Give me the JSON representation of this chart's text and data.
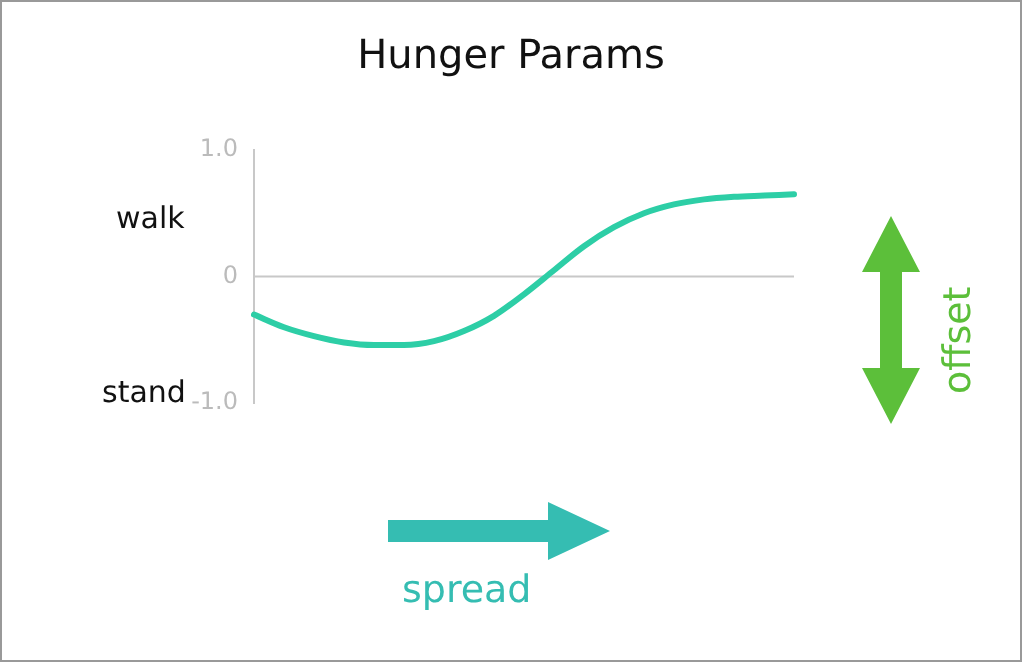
{
  "chart_data": {
    "type": "line",
    "title": "Hunger Params",
    "categories": [
      null,
      null,
      null,
      null,
      null,
      null,
      null,
      null,
      null,
      null,
      null,
      null,
      null,
      null,
      null,
      null,
      null,
      null,
      null
    ],
    "series": [
      {
        "color": "#2dcea6",
        "values": [
          -0.3,
          -0.4,
          -0.47,
          -0.52,
          -0.54,
          -0.54,
          -0.51,
          -0.43,
          -0.31,
          -0.14,
          0.05,
          0.24,
          0.39,
          0.5,
          0.57,
          0.61,
          0.63,
          0.64,
          0.65
        ]
      }
    ],
    "ylim": [
      -1,
      1
    ],
    "yticks": [
      {
        "value": 1,
        "label": "1.0"
      },
      0,
      {
        "value": -1,
        "label": "-1.0"
      }
    ],
    "ref_lines": [
      {
        "axis": "y",
        "value": 0,
        "color": "#c8c8c8"
      }
    ],
    "annotations": [
      "walk",
      "stand",
      "offset",
      "spread"
    ],
    "grid": false,
    "legend": false,
    "marker": "none",
    "line_style": "solid"
  }
}
